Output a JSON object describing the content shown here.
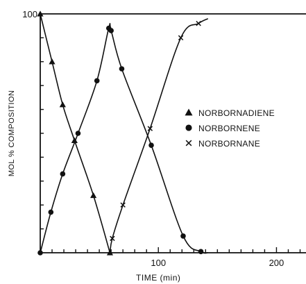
{
  "chart_data": {
    "type": "scatter",
    "title": "",
    "xlabel": "TIME (min)",
    "ylabel": "MOL % COMPOSITION",
    "xlim": [
      0,
      225
    ],
    "ylim": [
      0,
      100
    ],
    "x_ticks": [
      100,
      200
    ],
    "y_ticks": [
      100
    ],
    "x_minor_tick_step": 10,
    "y_minor_tick_step": 10,
    "grid": false,
    "legend_position": "right",
    "series": [
      {
        "name": "NORBORNADIENE",
        "marker": "triangle",
        "x": [
          0,
          10,
          19,
          29,
          45,
          59
        ],
        "y": [
          100,
          80,
          62,
          47,
          24,
          0
        ],
        "curve_x": [
          0,
          10,
          19,
          29,
          45,
          59
        ],
        "curve_y": [
          100,
          80,
          62,
          47,
          24,
          0
        ]
      },
      {
        "name": "NORBORNENE",
        "marker": "circle",
        "x": [
          0,
          9,
          19,
          32,
          48,
          58,
          60,
          69,
          94,
          121,
          136
        ],
        "y": [
          0,
          17,
          33,
          50,
          72,
          94,
          93,
          77,
          45,
          7,
          0.5
        ],
        "curve_x": [
          0,
          9,
          19,
          32,
          48,
          58,
          60,
          69,
          94,
          121,
          136,
          142
        ],
        "curve_y": [
          0,
          17,
          33,
          50,
          72,
          94,
          93,
          77,
          45,
          7,
          0.5,
          0
        ]
      },
      {
        "name": "NORBORNANE",
        "marker": "x",
        "x": [
          61,
          70,
          93,
          119,
          134
        ],
        "y": [
          6,
          20,
          52,
          90,
          96
        ],
        "curve_x": [
          59,
          61,
          70,
          93,
          119,
          134,
          142
        ],
        "curve_y": [
          0,
          6,
          20,
          52,
          90,
          96,
          98
        ]
      }
    ]
  }
}
